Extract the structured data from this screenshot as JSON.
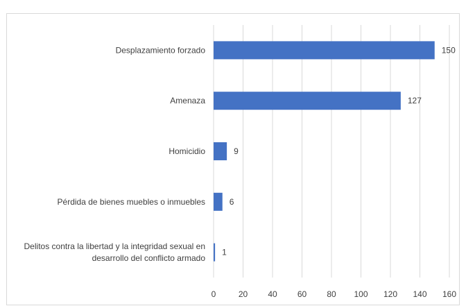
{
  "chart_data": {
    "type": "bar",
    "orientation": "horizontal",
    "categories": [
      [
        "Desplazamiento forzado"
      ],
      [
        "Amenaza"
      ],
      [
        "Homicidio"
      ],
      [
        "Pérdida de bienes muebles o inmuebles"
      ],
      [
        "Delitos contra la libertad y la integridad sexual en",
        "desarrollo del conflicto armado"
      ]
    ],
    "values": [
      150,
      127,
      9,
      6,
      1
    ],
    "data_labels": [
      "150",
      "127",
      "9",
      "6",
      "1"
    ],
    "xlim": [
      0,
      160
    ],
    "xticks": [
      0,
      20,
      40,
      60,
      80,
      100,
      120,
      140,
      160
    ],
    "title": "",
    "xlabel": "",
    "ylabel": "",
    "grid": "vertical",
    "legend": "none",
    "bar_color": "#4472c4",
    "grid_color": "#d9d9d9",
    "text_color": "#404040"
  }
}
